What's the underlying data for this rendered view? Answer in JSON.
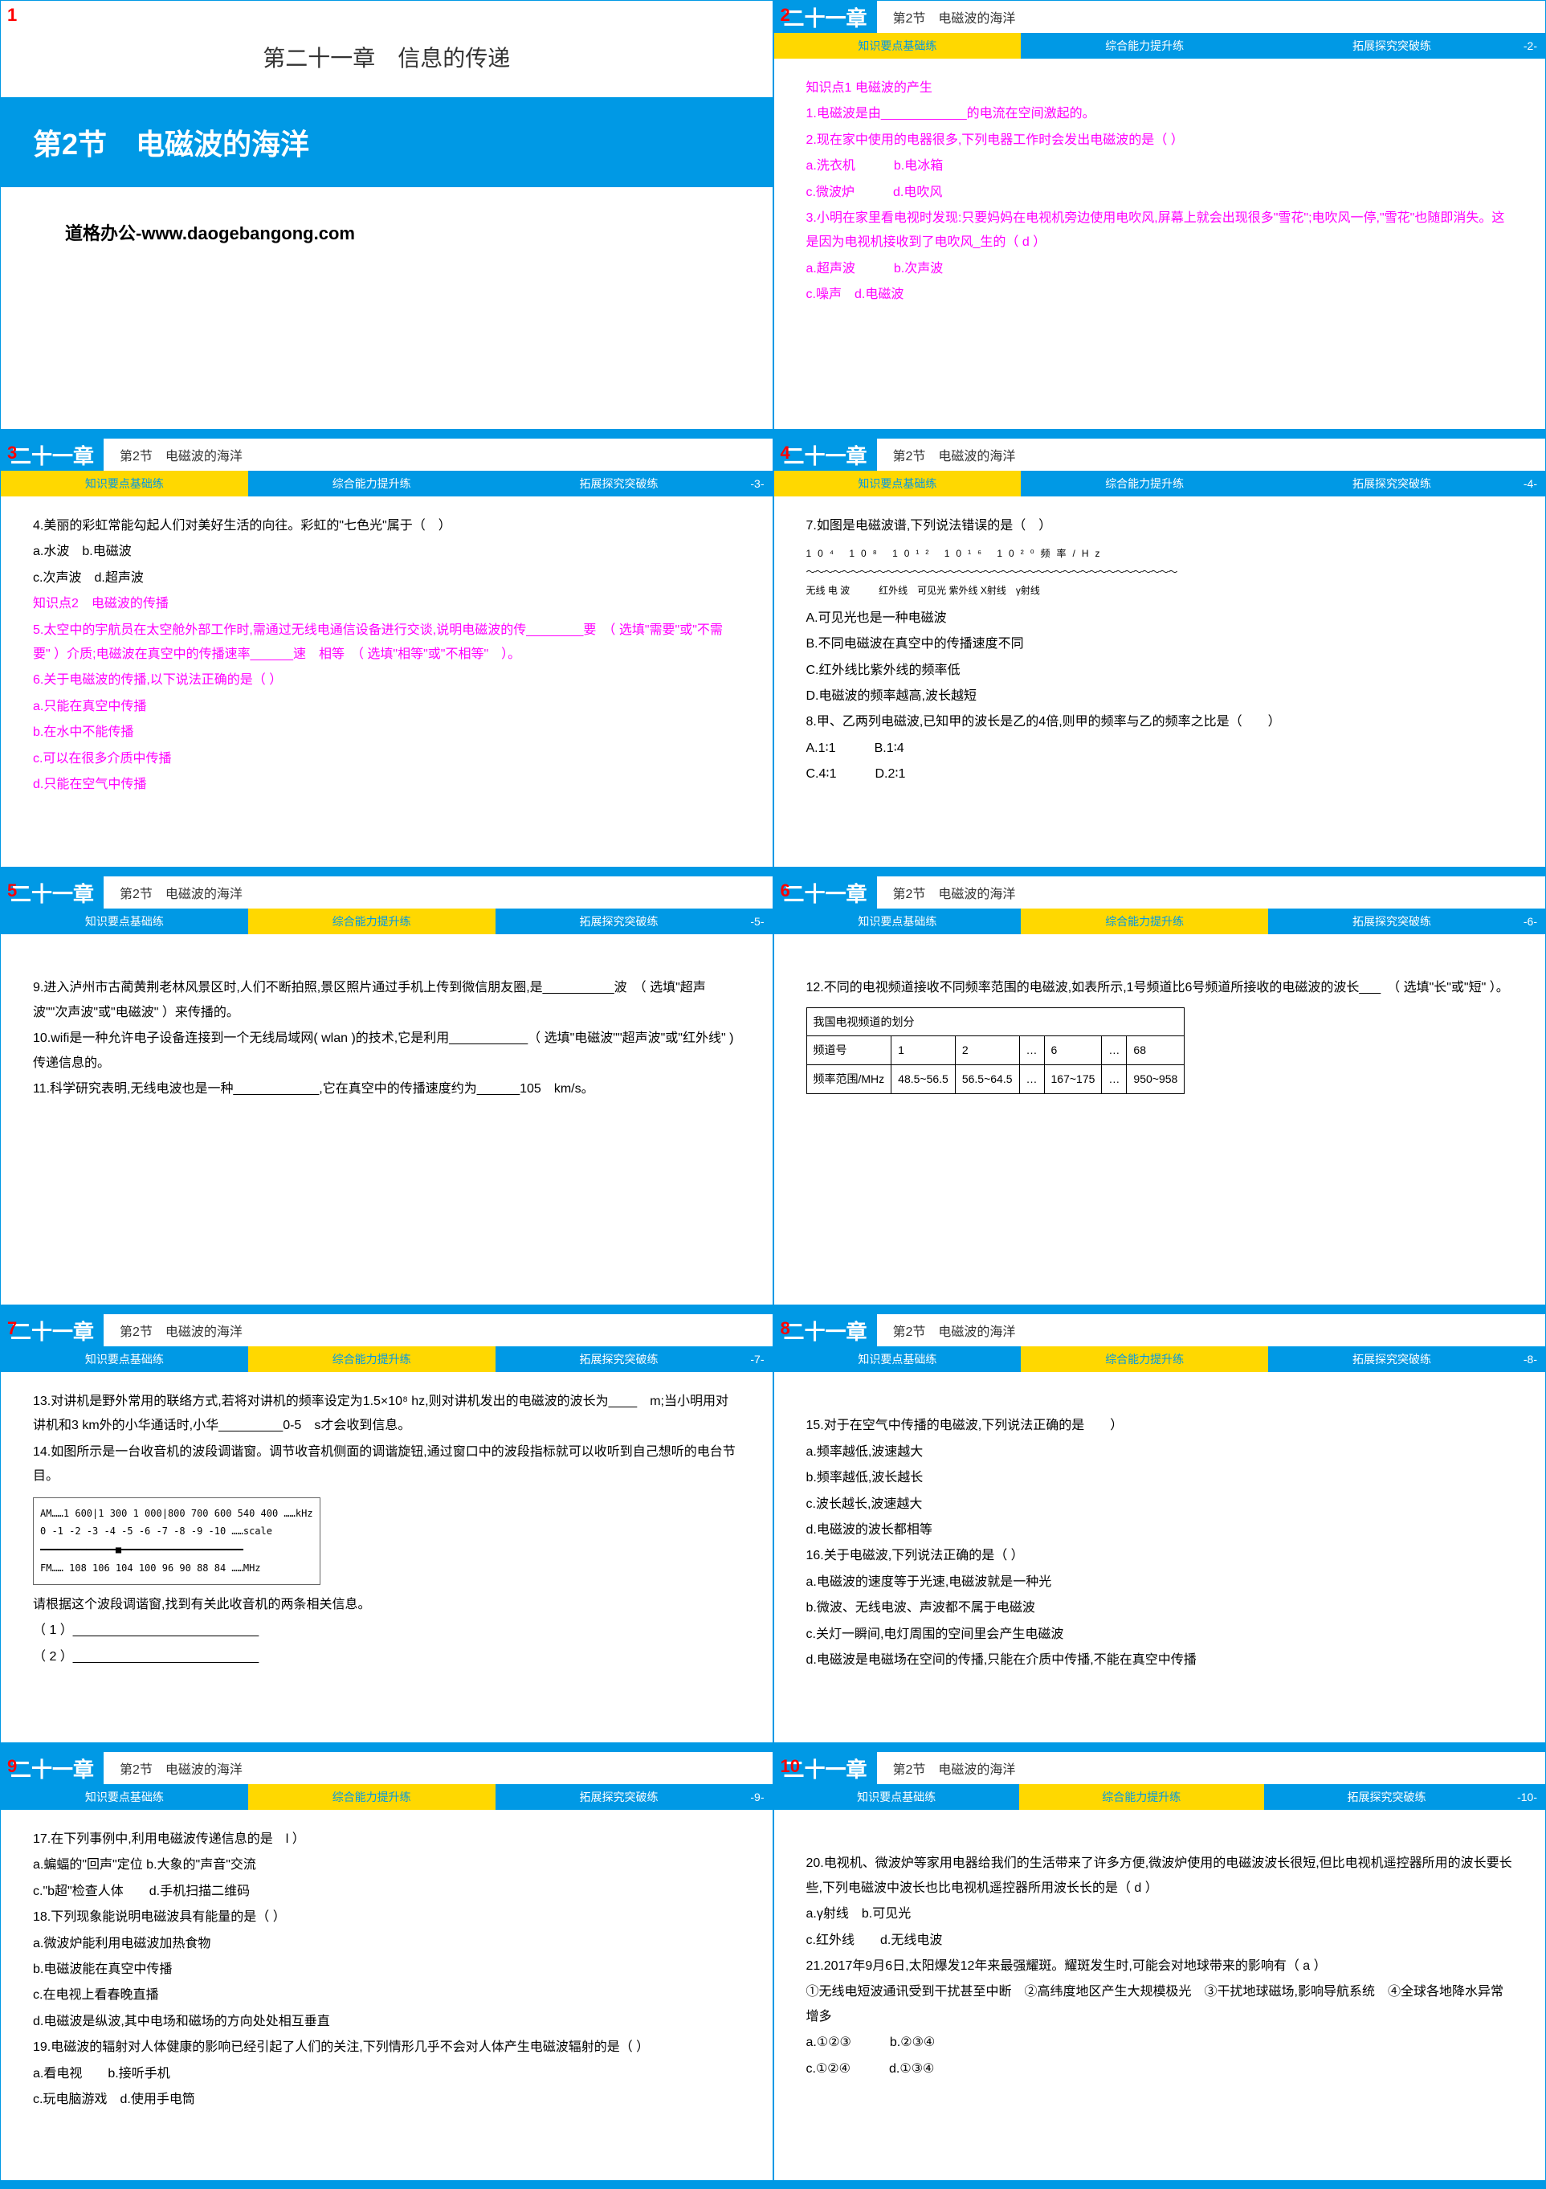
{
  "slide1": {
    "num": "1",
    "chapter": "第二十一章　信息的传递",
    "section": "第2节　电磁波的海洋",
    "footer": "道格办公-www.daogebangong.com"
  },
  "header": {
    "chapter_tag": "二十一章",
    "section": "第2节　电磁波的海洋",
    "tab1": "知识要点基础练",
    "tab2": "综合能力提升练",
    "tab3": "拓展探究突破练"
  },
  "slide2": {
    "num": "2",
    "page": "-2-",
    "kp": "知识点1  电磁波的产生",
    "q1": "1.电磁波是由____________的电流在空间激起的。",
    "q2": "2.现在家中使用的电器很多,下列电器工作时会发出电磁波的是（  ）",
    "q2a": "a.洗衣机",
    "q2b": "b.电冰箱",
    "q2c": "c.微波炉",
    "q2d": "d.电吹风",
    "q3": "3.小明在家里看电视时发现:只要妈妈在电视机旁边使用电吹风,屏幕上就会出现很多\"雪花\";电吹风一停,\"雪花\"也随即消失。这是因为电视机接收到了电吹风_生的（ d ）",
    "q3a": "a.超声波",
    "q3b": "b.次声波",
    "q3c": "c.噪声",
    "q3d": "d.电磁波"
  },
  "slide3": {
    "num": "3",
    "page": "-3-",
    "q4": "4.美丽的彩虹常能勾起人们对美好生活的向往。彩虹的\"七色光\"属于（　）",
    "q4a": "a.水波",
    "q4b": "b.电磁波",
    "q4c": "c.次声波",
    "q4d": "d.超声波",
    "kp2": "知识点2　电磁波的传播",
    "q5": "5.太空中的宇航员在太空舱外部工作时,需通过无线电通信设备进行交谈,说明电磁波的传________要　（ 选填\"需要\"或\"不需要\" ）介质;电磁波在真空中的传播速率______速　相等　（ 选填\"相等\"或\"不相等\"　）。",
    "q6": "6.关于电磁波的传播,以下说法正确的是（   ）",
    "q6a": "a.只能在真空中传播",
    "q6b": "b.在水中不能传播",
    "q6c": "c.可以在很多介质中传播",
    "q6d": "d.只能在空气中传播"
  },
  "slide4": {
    "num": "4",
    "page": "-4-",
    "q7": "7.如图是电磁波谱,下列说法错误的是（　）",
    "spec_labels": "无线 电 波　　　红外线　可见光 紫外线 X射线　γ射线",
    "spec_freq": "10⁴ 10⁸ 10¹² 10¹⁶ 10²⁰频率/Hz",
    "q7a": "A.可见光也是一种电磁波",
    "q7b": "B.不同电磁波在真空中的传播速度不同",
    "q7c": "C.红外线比紫外线的频率低",
    "q7d": "D.电磁波的频率越高,波长越短",
    "q8": "8.甲、乙两列电磁波,已知甲的波长是乙的4倍,则甲的频率与乙的频率之比是（　　）",
    "q8a": "A.1∶1",
    "q8b": "B.1∶4",
    "q8c": "C.4∶1",
    "q8d": "D.2∶1"
  },
  "slide5": {
    "num": "5",
    "page": "-5-",
    "q9": "9.进入泸州市古蔺黄荆老林风景区时,人们不断拍照,景区照片通过手机上传到微信朋友圈,是__________波　（ 选填\"超声波\"\"次声波\"或\"电磁波\" ）来传播的。",
    "q10": "10.wifi是一种允许电子设备连接到一个无线局域网( wlan )的技术,它是利用___________（ 选填\"电磁波\"\"超声波\"或\"红外线\" )传递信息的。",
    "q11": "11.科学研究表明,无线电波也是一种____________,它在真空中的传播速度约为______105　km/s。"
  },
  "slide6": {
    "num": "6",
    "page": "-6-",
    "q12": "12.不同的电视频道接收不同频率范围的电磁波,如表所示,1号频道比6号频道所接收的电磁波的波长___　（ 选填\"长\"或\"短\" ）。",
    "table_title": "我国电视频道的划分",
    "th1": "频道号",
    "th2": "频率范围/MHz",
    "c1": "1",
    "c2": "2",
    "c3": "…",
    "c4": "6",
    "c5": "…",
    "c6": "68",
    "r1": "48.5~56.5",
    "r2": "56.5~64.5",
    "r3": "…",
    "r4": "167~175",
    "r5": "…",
    "r6": "950~958"
  },
  "slide7": {
    "num": "7",
    "page": "-7-",
    "q13": "13.对讲机是野外常用的联络方式,若将对讲机的频率设定为1.5×10⁸ hz,则对讲机发出的电磁波的波长为____　m;当小明用对讲机和3 km外的小华通话时,小华_________0-5　s才会收到信息。",
    "q14": "14.如图所示是一台收音机的波段调谐窗。调节收音机侧面的调谐旋钮,通过窗口中的波段指标就可以收听到自己想听的电台节目。",
    "radio_am": "AM……1 600|1 300 1 000|800  700 600  540   400  ……kHz",
    "radio_scale": "0 -1 -2 -3 -4 -5 -6 -7 -8 -9 -10 ……scale",
    "radio_fm": "FM…… 108   106   104  100 96 90   88   84   ……MHz",
    "q14p": "请根据这个波段调谐窗,找到有关此收音机的两条相关信息。",
    "q14_1": "（ 1 ）__________________________",
    "q14_2": "（ 2 ）__________________________"
  },
  "slide8": {
    "num": "8",
    "page": "-8-",
    "q15": "15.对于在空气中传播的电磁波,下列说法正确的是　　）",
    "q15a": "a.频率越低,波速越大",
    "q15b": "b.频率越低,波长越长",
    "q15c": "c.波长越长,波速越大",
    "q15d": "d.电磁波的波长都相等",
    "q16": "16.关于电磁波,下列说法正确的是（   ）",
    "q16a": "a.电磁波的速度等于光速,电磁波就是一种光",
    "q16b": "b.微波、无线电波、声波都不属于电磁波",
    "q16c": "c.关灯一瞬间,电灯周围的空间里会产生电磁波",
    "q16d": "d.电磁波是电磁场在空间的传播,只能在介质中传播,不能在真空中传播"
  },
  "slide9": {
    "num": "9",
    "page": "-9-",
    "q17": "17.在下列事例中,利用电磁波传递信息的是　l ）",
    "q17a": "a.蝙蝠的\"回声\"定位",
    "q17b": "b.大象的\"声音\"交流",
    "q17c": "c.\"b超\"检查人体",
    "q17d": "d.手机扫描二维码",
    "q18": "18.下列现象能说明电磁波具有能量的是（   ）",
    "q18a": "a.微波炉能利用电磁波加热食物",
    "q18b": "b.电磁波能在真空中传播",
    "q18c": "c.在电视上看春晚直播",
    "q18d": "d.电磁波是纵波,其中电场和磁场的方向处处相互垂直",
    "q19": "19.电磁波的辐射对人体健康的影响已经引起了人们的关注,下列情形几乎不会对人体产生电磁波辐射的是（   ）",
    "q19a": "a.看电视",
    "q19b": "b.接听手机",
    "q19c": "c.玩电脑游戏",
    "q19d": "d.使用手电筒"
  },
  "slide10": {
    "num": "10",
    "page": "-10-",
    "q20": "20.电视机、微波炉等家用电器给我们的生活带来了许多方便,微波炉使用的电磁波波长很短,但比电视机遥控器所用的波长要长些,下列电磁波中波长也比电视机遥控器所用波长长的是（ d ）",
    "q20a": "a.γ射线",
    "q20b": "b.可见光",
    "q20c": "c.红外线",
    "q20d": "d.无线电波",
    "q21": "21.2017年9月6日,太阳爆发12年来最强耀斑。耀斑发生时,可能会对地球带来的影响有（   a ）",
    "q21_1": "①无线电短波通讯受到干扰甚至中断　②高纬度地区产生大规模极光　③干扰地球磁场,影响导航系统　④全球各地降水异常增多",
    "q21a": "a.①②③",
    "q21b": "b.②③④",
    "q21c": "c.①②④",
    "q21d": "d.①③④"
  }
}
